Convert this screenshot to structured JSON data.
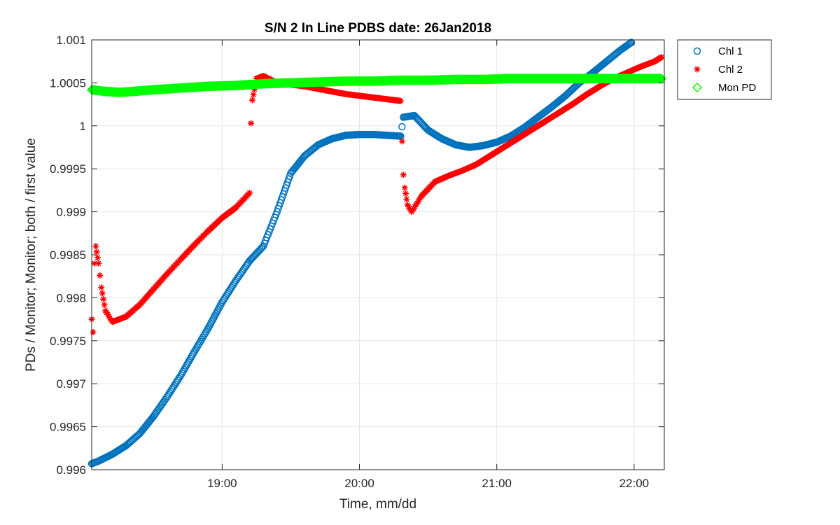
{
  "chart_data": {
    "type": "scatter",
    "title": "S/N 2 In Line PDBS date: 26Jan2018",
    "xlabel": "Time, mm/dd",
    "ylabel": "PDs / Monitor; Monitor; both / first value",
    "x_unit": "hours",
    "xlim": [
      18.05,
      22.22
    ],
    "ylim": [
      0.996,
      1.001
    ],
    "xticks": [
      19,
      20,
      21,
      22
    ],
    "xtick_labels": [
      "19:00",
      "20:00",
      "21:00",
      "22:00"
    ],
    "yticks": [
      0.996,
      0.9965,
      0.997,
      0.9975,
      0.998,
      0.9985,
      0.999,
      0.9995,
      1.0,
      1.0005,
      1.001
    ],
    "ytick_labels": [
      "0.996",
      "0.9965",
      "0.997",
      "0.9975",
      "0.998",
      "0.9985",
      "0.999",
      "0.9995",
      "1",
      "1.0005",
      "1.001"
    ],
    "grid": true,
    "legend_position": "top-right outside",
    "series": [
      {
        "name": "Chl 1",
        "marker": "circle",
        "color": "#0072BD",
        "points": [
          [
            18.05,
            0.99607
          ],
          [
            18.1,
            0.9961
          ],
          [
            18.2,
            0.99618
          ],
          [
            18.3,
            0.99628
          ],
          [
            18.4,
            0.99642
          ],
          [
            18.5,
            0.99662
          ],
          [
            18.6,
            0.99685
          ],
          [
            18.7,
            0.9971
          ],
          [
            18.8,
            0.99738
          ],
          [
            18.9,
            0.99765
          ],
          [
            19.0,
            0.99795
          ],
          [
            19.1,
            0.9982
          ],
          [
            19.2,
            0.99843
          ],
          [
            19.3,
            0.9986
          ],
          [
            19.4,
            0.999
          ],
          [
            19.5,
            0.99945
          ],
          [
            19.6,
            0.99965
          ],
          [
            19.7,
            0.99978
          ],
          [
            19.8,
            0.99985
          ],
          [
            19.9,
            0.99989
          ],
          [
            20.0,
            0.9999
          ],
          [
            20.1,
            0.9999
          ],
          [
            20.2,
            0.99989
          ],
          [
            20.3,
            0.99988
          ],
          [
            20.32,
            1.0001
          ],
          [
            20.4,
            1.00012
          ],
          [
            20.5,
            0.99995
          ],
          [
            20.6,
            0.99985
          ],
          [
            20.7,
            0.99978
          ],
          [
            20.8,
            0.99975
          ],
          [
            20.9,
            0.99977
          ],
          [
            21.0,
            0.99981
          ],
          [
            21.1,
            0.99988
          ],
          [
            21.2,
            0.99998
          ],
          [
            21.3,
            1.0001
          ],
          [
            21.4,
            1.00022
          ],
          [
            21.5,
            1.00035
          ],
          [
            21.6,
            1.0005
          ],
          [
            21.7,
            1.00062
          ],
          [
            21.8,
            1.00075
          ],
          [
            21.9,
            1.00088
          ],
          [
            21.98,
            1.00097
          ]
        ]
      },
      {
        "name": "Chl 2",
        "marker": "star",
        "color": "#FF0000",
        "points": [
          [
            18.05,
            0.99775
          ],
          [
            18.06,
            0.9976
          ],
          [
            18.07,
            0.9984
          ],
          [
            18.08,
            0.9986
          ],
          [
            18.1,
            0.9984
          ],
          [
            18.12,
            0.99812
          ],
          [
            18.15,
            0.99785
          ],
          [
            18.2,
            0.99772
          ],
          [
            18.3,
            0.99778
          ],
          [
            18.4,
            0.99792
          ],
          [
            18.5,
            0.9981
          ],
          [
            18.6,
            0.99828
          ],
          [
            18.7,
            0.99845
          ],
          [
            18.8,
            0.99862
          ],
          [
            18.9,
            0.99878
          ],
          [
            19.0,
            0.99893
          ],
          [
            19.1,
            0.99905
          ],
          [
            19.2,
            0.99922
          ],
          [
            19.21,
            1.00003
          ],
          [
            19.22,
            1.0003
          ],
          [
            19.25,
            1.00055
          ],
          [
            19.3,
            1.00058
          ],
          [
            19.4,
            1.0005
          ],
          [
            19.5,
            1.00048
          ],
          [
            19.6,
            1.00046
          ],
          [
            19.7,
            1.00043
          ],
          [
            19.8,
            1.0004
          ],
          [
            19.9,
            1.00037
          ],
          [
            20.0,
            1.00035
          ],
          [
            20.1,
            1.00033
          ],
          [
            20.2,
            1.00031
          ],
          [
            20.3,
            1.00029
          ],
          [
            20.31,
            0.99982
          ],
          [
            20.32,
            0.99943
          ],
          [
            20.33,
            0.99928
          ],
          [
            20.35,
            0.99908
          ],
          [
            20.38,
            0.999
          ],
          [
            20.45,
            0.99918
          ],
          [
            20.55,
            0.99935
          ],
          [
            20.65,
            0.99942
          ],
          [
            20.75,
            0.99948
          ],
          [
            20.85,
            0.99955
          ],
          [
            20.95,
            0.99965
          ],
          [
            21.05,
            0.99975
          ],
          [
            21.15,
            0.99985
          ],
          [
            21.25,
            0.99995
          ],
          [
            21.35,
            1.00005
          ],
          [
            21.45,
            1.00015
          ],
          [
            21.55,
            1.00025
          ],
          [
            21.65,
            1.00036
          ],
          [
            21.75,
            1.00046
          ],
          [
            21.85,
            1.00055
          ],
          [
            21.95,
            1.00062
          ],
          [
            22.05,
            1.00069
          ],
          [
            22.15,
            1.00075
          ],
          [
            22.2,
            1.0008
          ]
        ]
      },
      {
        "name": "Mon PD",
        "marker": "diamond",
        "color": "#00FF00",
        "points": [
          [
            18.05,
            1.00042
          ],
          [
            18.15,
            1.0004
          ],
          [
            18.25,
            1.00039
          ],
          [
            18.35,
            1.0004
          ],
          [
            18.5,
            1.00042
          ],
          [
            18.7,
            1.00044
          ],
          [
            18.9,
            1.00046
          ],
          [
            19.1,
            1.00047
          ],
          [
            19.3,
            1.00049
          ],
          [
            19.5,
            1.0005
          ],
          [
            19.7,
            1.00051
          ],
          [
            19.9,
            1.00052
          ],
          [
            20.1,
            1.00052
          ],
          [
            20.3,
            1.00053
          ],
          [
            20.5,
            1.00053
          ],
          [
            20.7,
            1.00054
          ],
          [
            20.9,
            1.00054
          ],
          [
            21.1,
            1.00055
          ],
          [
            21.3,
            1.00055
          ],
          [
            21.5,
            1.00055
          ],
          [
            21.7,
            1.00055
          ],
          [
            21.9,
            1.00055
          ],
          [
            22.1,
            1.00055
          ],
          [
            22.2,
            1.00055
          ]
        ]
      }
    ]
  }
}
